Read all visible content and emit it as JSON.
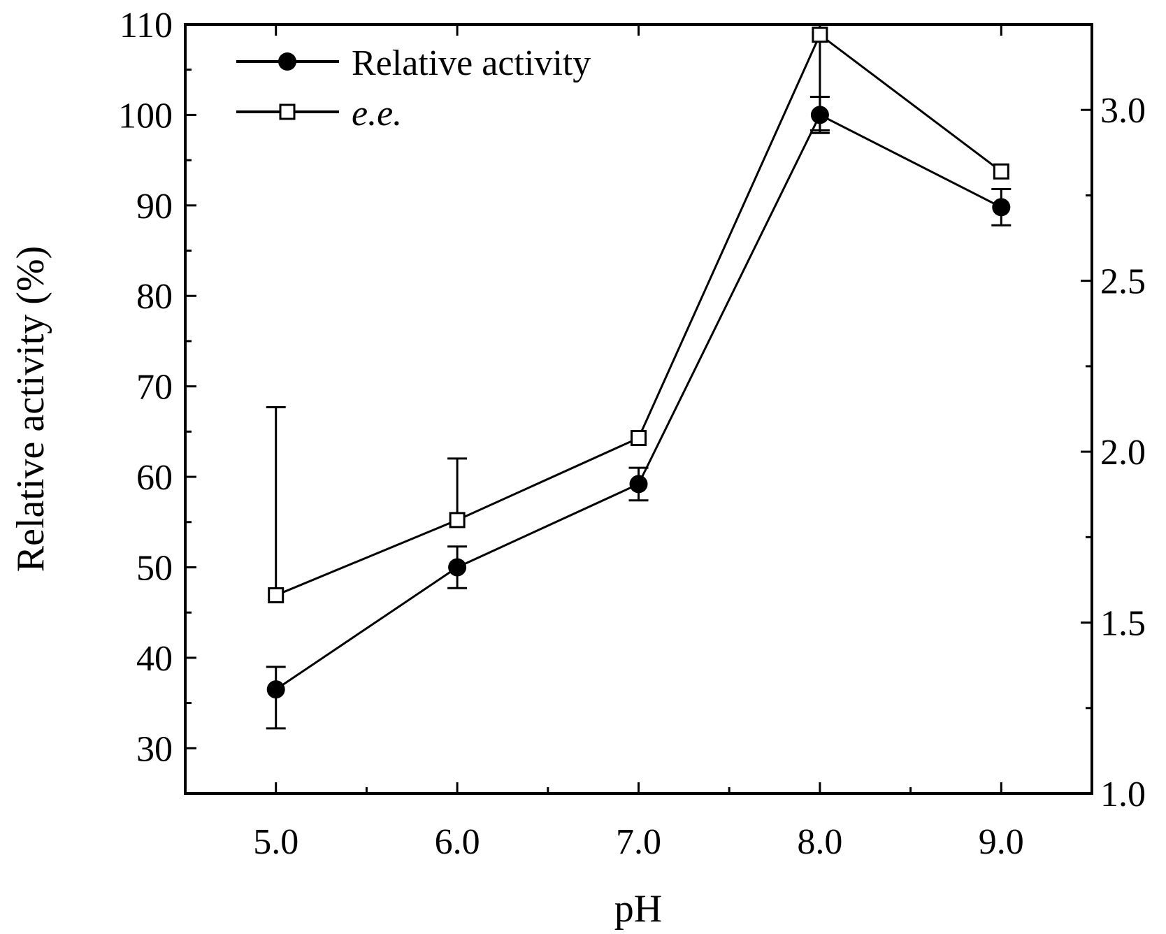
{
  "chart_data": {
    "type": "line",
    "xlabel": "pH",
    "ylabel": "Relative activity (%)",
    "y2label": "",
    "x": [
      5.0,
      6.0,
      7.0,
      8.0,
      9.0
    ],
    "x_ticks": [
      "5.0",
      "6.0",
      "7.0",
      "8.0",
      "9.0"
    ],
    "xlim": [
      4.5,
      9.5
    ],
    "ylim": [
      25,
      110
    ],
    "y_ticks": [
      "30",
      "40",
      "50",
      "60",
      "70",
      "80",
      "90",
      "100",
      "110"
    ],
    "y2lim": [
      1.0,
      3.25
    ],
    "y2_ticks": [
      "1.0",
      "1.5",
      "2.0",
      "2.5",
      "3.0"
    ],
    "legend_position": "top-left",
    "series": [
      {
        "name": "Relative activity",
        "axis": "left",
        "marker": "filled-circle",
        "values": [
          36.5,
          50.0,
          59.2,
          100.0,
          89.8
        ],
        "error_plus": [
          2.5,
          2.3,
          1.8,
          2.0,
          2.0
        ],
        "error_minus": [
          4.3,
          2.3,
          1.8,
          2.0,
          2.0
        ]
      },
      {
        "name": "e.e.",
        "axis": "right",
        "marker": "open-square",
        "values": [
          1.58,
          1.8,
          2.04,
          3.22,
          2.82
        ],
        "error_plus": [
          0.55,
          0.18,
          0,
          0,
          0
        ],
        "error_minus": [
          0,
          0,
          0,
          0.28,
          0
        ]
      }
    ]
  }
}
